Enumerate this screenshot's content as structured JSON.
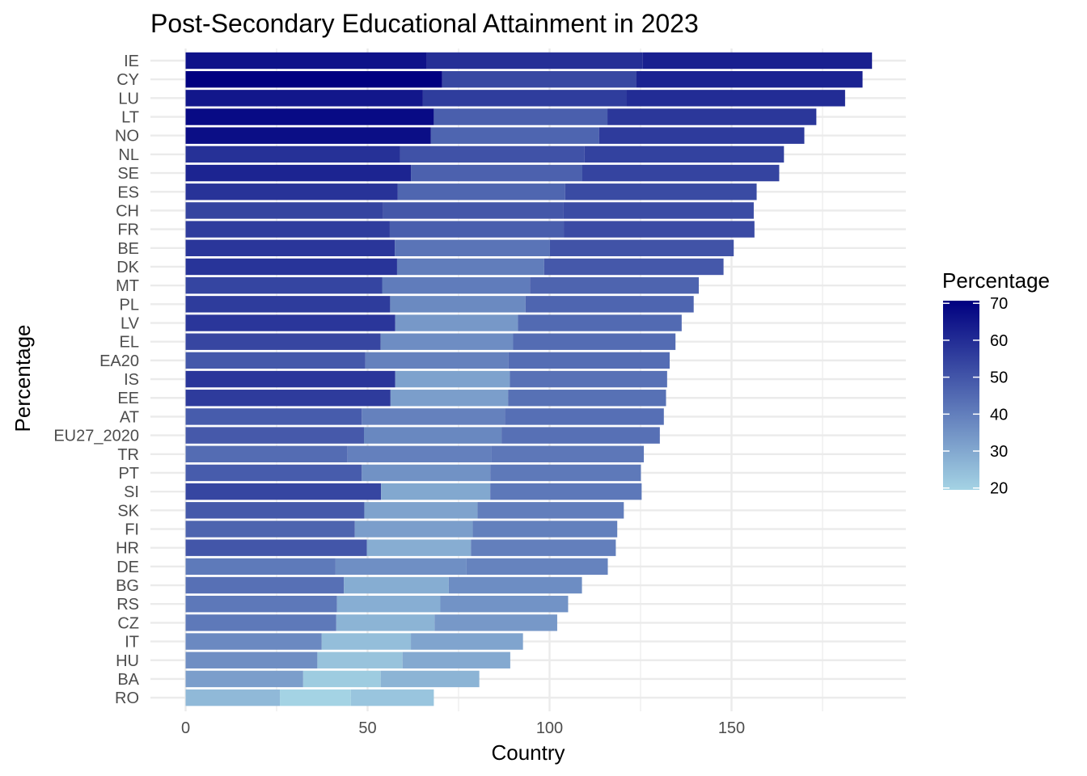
{
  "chart_data": {
    "type": "bar",
    "orientation": "horizontal",
    "stacked": true,
    "title": "Post-Secondary Educational Attainment in 2023",
    "xlabel": "Country",
    "ylabel": "Percentage",
    "xlim": [
      0,
      190
    ],
    "x_ticks": [
      0,
      50,
      100,
      150
    ],
    "grid": true,
    "legend_position": "right",
    "legend": {
      "title": "Percentage",
      "ticks": [
        70,
        60,
        50,
        40,
        30,
        20
      ],
      "range": [
        19.5,
        70.7
      ],
      "color_low": "#a4d3e4",
      "color_high": "#000080"
    },
    "categories": [
      "IE",
      "CY",
      "LU",
      "LT",
      "NO",
      "NL",
      "SE",
      "ES",
      "CH",
      "FR",
      "BE",
      "DK",
      "MT",
      "PL",
      "LV",
      "EL",
      "EA20",
      "IS",
      "EE",
      "AT",
      "EU27_2020",
      "TR",
      "PT",
      "SI",
      "SK",
      "FI",
      "HR",
      "DE",
      "BG",
      "RS",
      "CZ",
      "IT",
      "HU",
      "BA",
      "RO"
    ],
    "rows": [
      {
        "country": "IE",
        "segments": [
          66.3,
          59.3,
          63.0
        ]
      },
      {
        "country": "CY",
        "segments": [
          70.5,
          53.3,
          62.2
        ]
      },
      {
        "country": "LU",
        "segments": [
          65.2,
          55.9,
          60.1
        ]
      },
      {
        "country": "LT",
        "segments": [
          68.2,
          47.7,
          57.4
        ]
      },
      {
        "country": "NO",
        "segments": [
          67.4,
          46.2,
          56.4
        ]
      },
      {
        "country": "NL",
        "segments": [
          58.9,
          50.7,
          54.8
        ]
      },
      {
        "country": "SE",
        "segments": [
          61.9,
          47.1,
          54.1
        ]
      },
      {
        "country": "ES",
        "segments": [
          58.3,
          46.0,
          52.6
        ]
      },
      {
        "country": "CH",
        "segments": [
          54.3,
          49.5,
          52.3
        ]
      },
      {
        "country": "FR",
        "segments": [
          56.1,
          47.8,
          52.4
        ]
      },
      {
        "country": "BE",
        "segments": [
          57.5,
          42.6,
          50.5
        ]
      },
      {
        "country": "DK",
        "segments": [
          58.1,
          40.4,
          49.3
        ]
      },
      {
        "country": "MT",
        "segments": [
          54.0,
          40.6,
          46.4
        ]
      },
      {
        "country": "PL",
        "segments": [
          56.2,
          37.2,
          46.2
        ]
      },
      {
        "country": "LV",
        "segments": [
          57.6,
          33.7,
          45.0
        ]
      },
      {
        "country": "EL",
        "segments": [
          53.6,
          36.4,
          44.6
        ]
      },
      {
        "country": "EA20",
        "segments": [
          49.4,
          39.3,
          44.3
        ]
      },
      {
        "country": "IS",
        "segments": [
          57.6,
          31.5,
          43.2
        ]
      },
      {
        "country": "EE",
        "segments": [
          56.3,
          32.3,
          43.4
        ]
      },
      {
        "country": "AT",
        "segments": [
          48.4,
          39.3,
          43.7
        ]
      },
      {
        "country": "EU27_2020",
        "segments": [
          49.0,
          37.8,
          43.5
        ]
      },
      {
        "country": "TR",
        "segments": [
          44.5,
          39.6,
          41.8
        ]
      },
      {
        "country": "PT",
        "segments": [
          48.4,
          35.3,
          41.4
        ]
      },
      {
        "country": "SI",
        "segments": [
          53.7,
          30.0,
          41.6
        ]
      },
      {
        "country": "SK",
        "segments": [
          49.1,
          31.1,
          40.2
        ]
      },
      {
        "country": "FI",
        "segments": [
          46.5,
          32.4,
          39.7
        ]
      },
      {
        "country": "HR",
        "segments": [
          49.8,
          28.6,
          39.8
        ]
      },
      {
        "country": "DE",
        "segments": [
          41.2,
          36.0,
          38.8
        ]
      },
      {
        "country": "BG",
        "segments": [
          43.5,
          28.8,
          36.6
        ]
      },
      {
        "country": "RS",
        "segments": [
          41.6,
          28.4,
          35.1
        ]
      },
      {
        "country": "CZ",
        "segments": [
          41.4,
          27.0,
          33.7
        ]
      },
      {
        "country": "IT",
        "segments": [
          37.4,
          24.5,
          30.8
        ]
      },
      {
        "country": "HU",
        "segments": [
          36.2,
          23.4,
          29.6
        ]
      },
      {
        "country": "BA",
        "segments": [
          32.3,
          21.3,
          27.1
        ]
      },
      {
        "country": "RO",
        "segments": [
          25.9,
          19.5,
          22.8
        ]
      }
    ]
  }
}
